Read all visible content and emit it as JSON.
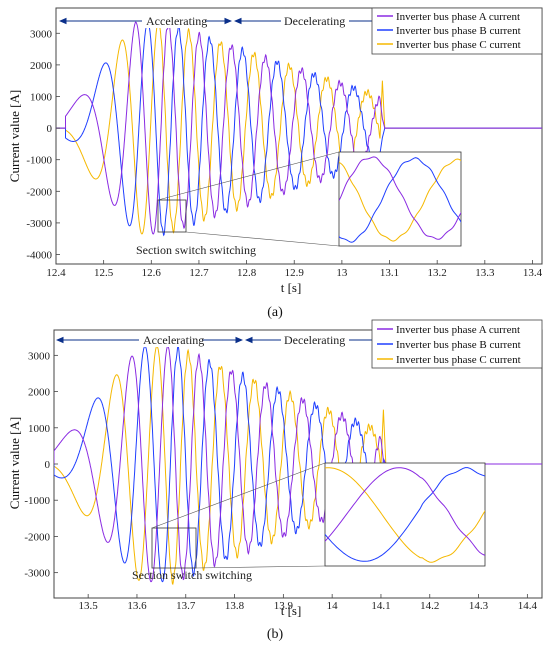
{
  "colors": {
    "A": "#8a2be2",
    "B": "#1f3fff",
    "C": "#f5b800",
    "arrow": "#0a2f8a"
  },
  "chart_data": [
    {
      "type": "line",
      "panel_label": "(a)",
      "xlabel": "t [s]",
      "ylabel": "Current value [A]",
      "xlim": [
        12.4,
        13.42
      ],
      "ylim": [
        -4300,
        3800
      ],
      "xticks": [
        12.4,
        12.5,
        12.6,
        12.7,
        12.8,
        12.9,
        13,
        13.1,
        13.2,
        13.3,
        13.4
      ],
      "xtick_labels": [
        "12.4",
        "12.5",
        "12.6",
        "12.7",
        "12.8",
        "12.9",
        "13",
        "13.1",
        "13.2",
        "13.3",
        "13.4"
      ],
      "yticks": [
        -4000,
        -3000,
        -2000,
        -1000,
        0,
        1000,
        2000,
        3000
      ],
      "ytick_labels": [
        "-4000",
        "-3000",
        "-2000",
        "-1000",
        "0",
        "1000",
        "2000",
        "3000"
      ],
      "legend": {
        "position": "top-right",
        "labels": [
          "Inverter bus phase A current",
          "Inverter bus phase B current",
          "Inverter bus phase C current"
        ]
      },
      "annotations": {
        "accelerating": "Accelerating",
        "decelerating": "Decelerating",
        "switch": "Section switch switching"
      },
      "phase_regions": {
        "accelerating": [
          12.4,
          12.77
        ],
        "decelerating": [
          12.77,
          13.07
        ]
      },
      "waveform": {
        "start": 12.42,
        "end": 13.08,
        "peak_time": 12.62,
        "peak_amp": 3350,
        "end_amp": 1000,
        "freq_start": 2,
        "freq_peak": 16,
        "freq_end": 11,
        "tail_A": 300,
        "tail_B": -300,
        "tail_C": 1500
      },
      "inset": {
        "t0": 12.62,
        "t1": 12.68
      },
      "series": [
        {
          "name": "Inverter bus phase A current",
          "color_key": "A"
        },
        {
          "name": "Inverter bus phase B current",
          "color_key": "B"
        },
        {
          "name": "Inverter bus phase C current",
          "color_key": "C"
        }
      ]
    },
    {
      "type": "line",
      "panel_label": "(b)",
      "xlabel": "t [s]",
      "ylabel": "Current value [A]",
      "xlim": [
        13.43,
        14.43
      ],
      "ylim": [
        -3700,
        3700
      ],
      "xticks": [
        13.5,
        13.6,
        13.7,
        13.8,
        13.9,
        14,
        14.1,
        14.2,
        14.3,
        14.4
      ],
      "xtick_labels": [
        "13.5",
        "13.6",
        "13.7",
        "13.8",
        "13.9",
        "14",
        "14.1",
        "14.2",
        "14.3",
        "14.4"
      ],
      "yticks": [
        -3000,
        -2000,
        -1000,
        0,
        1000,
        2000,
        3000
      ],
      "ytick_labels": [
        "-3000",
        "-2000",
        "-1000",
        "0",
        "1000",
        "2000",
        "3000"
      ],
      "legend": {
        "position": "top-right",
        "labels": [
          "Inverter bus phase A current",
          "Inverter bus phase B current",
          "Inverter bus phase C current"
        ]
      },
      "annotations": {
        "accelerating": "Accelerating",
        "decelerating": "Decelerating",
        "switch": "Section switch switching"
      },
      "phase_regions": {
        "accelerating": [
          13.43,
          13.79
        ],
        "decelerating": [
          13.79,
          14.1
        ]
      },
      "waveform": {
        "start": 13.43,
        "end": 14.1,
        "peak_time": 13.67,
        "peak_amp": 3250,
        "end_amp": 900,
        "freq_start": 2,
        "freq_peak": 16,
        "freq_end": 11,
        "tail_A": 100,
        "tail_B": 150,
        "tail_C": 1500
      },
      "inset": {
        "t0": 13.64,
        "t1": 13.69
      },
      "series": [
        {
          "name": "Inverter bus phase A current",
          "color_key": "A"
        },
        {
          "name": "Inverter bus phase B current",
          "color_key": "B"
        },
        {
          "name": "Inverter bus phase C current",
          "color_key": "C"
        }
      ]
    }
  ]
}
